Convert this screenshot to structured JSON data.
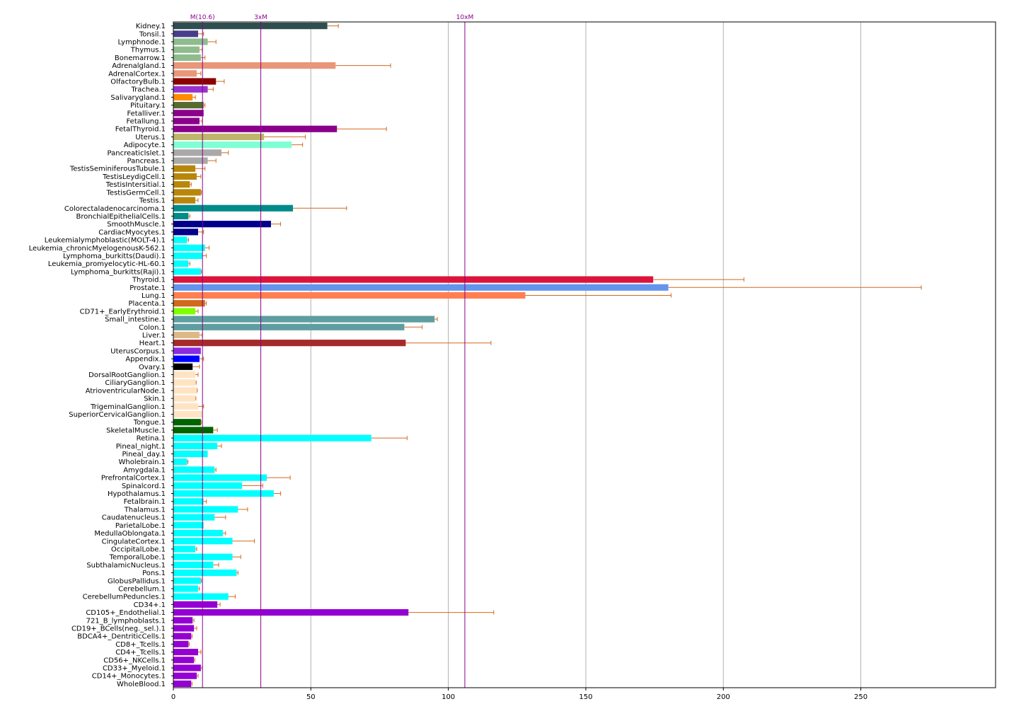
{
  "chart_data": {
    "type": "bar",
    "orientation": "horizontal",
    "xlim": [
      0,
      299
    ],
    "x_ticks": [
      0,
      50,
      100,
      150,
      200,
      250
    ],
    "grid": "vertical",
    "reference_lines": [
      {
        "label": "M(10.6)",
        "value": 10.6
      },
      {
        "label": "3xM",
        "value": 31.8
      },
      {
        "label": "10xM",
        "value": 106
      }
    ],
    "error_color": "#d2691e",
    "reference_color": "#8b008b",
    "categories": [
      "Kidney.1",
      "Tonsil.1",
      "Lymphnode.1",
      "Thymus.1",
      "Bonemarrow.1",
      "Adrenalgland.1",
      "AdrenalCortex.1",
      "OlfactoryBulb.1",
      "Trachea.1",
      "Salivarygland.1",
      "Pituitary.1",
      "Fetalliver.1",
      "Fetallung.1",
      "FetalThyroid.1",
      "Uterus.1",
      "Adipocyte.1",
      "PancreaticIslet.1",
      "Pancreas.1",
      "TestisSeminiferousTubule.1",
      "TestisLeydigCell.1",
      "TestisIntersitial.1",
      "TestisGermCell.1",
      "Testis.1",
      "Colorectaladenocarcinoma.1",
      "BronchialEpithelialCells.1",
      "SmoothMuscle.1",
      "CardiacMyocytes.1",
      "Leukemialymphoblastic(MOLT-4).1",
      "Leukemia_chronicMyelogenousK-562.1",
      "Lymphoma_burkitts(Daudi).1",
      "Leukemia_promyelocytic-HL-60.1",
      "Lymphoma_burkitts(Raji).1",
      "Thyroid.1",
      "Prostate.1",
      "Lung.1",
      "Placenta.1",
      "CD71+_EarlyErythroid.1",
      "Small_intestine.1",
      "Colon.1",
      "Liver.1",
      "Heart.1",
      "UterusCorpus.1",
      "Appendix.1",
      "Ovary.1",
      "DorsalRootGanglion.1",
      "CiliaryGanglion.1",
      "AtrioventricularNode.1",
      "Skin.1",
      "TrigeminalGanglion.1",
      "SuperiorCervicalGanglion.1",
      "Tongue.1",
      "SkeletalMuscle.1",
      "Retina.1",
      "Pineal_night.1",
      "Pineal_day.1",
      "Wholebrain.1",
      "Amygdala.1",
      "PrefrontalCortex.1",
      "Spinalcord.1",
      "Hypothalamus.1",
      "Fetalbrain.1",
      "Thalamus.1",
      "Caudatenucleus.1",
      "ParietalLobe.1",
      "MedullaOblongata.1",
      "CingulateCortex.1",
      "OccipitalLobe.1",
      "TemporalLobe.1",
      "SubthalamicNucleus.1",
      "Pons.1",
      "GlobusPallidus.1",
      "Cerebellum.1",
      "CerebellumPeduncles.1",
      "CD34+.1",
      "CD105+_Endothelial.1",
      "721_B_lymphoblasts.1",
      "CD19+_BCells(neg._sel.).1",
      "BDCA4+_DentriticCells.1",
      "CD8+_Tcells.1",
      "CD4+_Tcells.1",
      "CD56+_NKCells.1",
      "CD33+_Myeloid.1",
      "CD14+_Monocytes.1",
      "WholeBlood.1"
    ],
    "values": [
      56,
      9,
      12.5,
      9.5,
      10,
      59,
      8.5,
      15.5,
      12.5,
      7,
      11,
      11,
      9.5,
      59.5,
      33,
      43,
      17.5,
      12.5,
      8,
      8.5,
      6,
      10,
      8,
      43.5,
      5.5,
      35.5,
      9,
      5,
      11.5,
      10.5,
      5.5,
      10,
      174.5,
      180,
      128,
      11.5,
      8,
      95,
      84,
      9.5,
      84.5,
      10,
      9.5,
      7,
      8,
      8,
      8.5,
      8,
      9,
      10.5,
      10,
      14.5,
      72,
      16,
      12.5,
      5,
      15,
      34,
      25,
      36.5,
      11,
      23.5,
      15,
      11,
      18,
      21.5,
      8,
      21.5,
      14.5,
      23,
      10,
      9,
      20,
      16,
      85.5,
      7,
      7.5,
      6.5,
      5.5,
      9,
      7.5,
      10,
      8.5,
      6.5
    ],
    "errors": [
      4,
      2,
      3,
      1,
      1.5,
      20,
      1.5,
      3,
      2,
      1,
      0.5,
      0,
      1,
      18,
      15,
      4,
      2.5,
      3,
      3.5,
      1.5,
      0.5,
      0.2,
      1,
      19.5,
      0.5,
      3.5,
      2,
      0.5,
      1.5,
      1.5,
      0.5,
      0.2,
      33,
      92,
      53,
      0.5,
      1,
      1,
      6.5,
      1,
      31,
      0,
      1.5,
      2.5,
      1,
      0.3,
      0.2,
      0.2,
      2,
      0,
      0.2,
      1.5,
      13,
      1.5,
      0,
      0.3,
      0.5,
      8.5,
      7.5,
      2.5,
      1,
      3.5,
      4,
      0,
      1,
      8,
      0.5,
      3,
      2,
      0.5,
      0.2,
      0.5,
      2.5,
      1,
      31,
      0.5,
      1,
      0.3,
      0.3,
      1,
      0.3,
      0.5,
      0.5,
      0.3
    ],
    "colors": [
      "#2f4f4f",
      "#483d8b",
      "#8fbc8f",
      "#8fbc8f",
      "#8fbc8f",
      "#e9967a",
      "#e9967a",
      "#8b0000",
      "#9932cc",
      "#ff8c00",
      "#556b2f",
      "#8b008b",
      "#8b008b",
      "#8b008b",
      "#bdb76b",
      "#7fffd4",
      "#a9a9a9",
      "#a9a9a9",
      "#b8860b",
      "#b8860b",
      "#b8860b",
      "#b8860b",
      "#b8860b",
      "#008b8b",
      "#008b8b",
      "#00008b",
      "#00008b",
      "#00ffff",
      "#00ffff",
      "#00ffff",
      "#00ffff",
      "#00ffff",
      "#dc143c",
      "#6495ed",
      "#ff7f50",
      "#d2691e",
      "#7fff00",
      "#5f9ea0",
      "#5f9ea0",
      "#deb887",
      "#a52a2a",
      "#8a2be2",
      "#0000ff",
      "#000000",
      "#ffe4c4",
      "#ffe4c4",
      "#ffe4c4",
      "#ffe4c4",
      "#ffe4c4",
      "#ffe4c4",
      "#006400",
      "#006400",
      "#00ffff",
      "#00ffff",
      "#00ffff",
      "#00ffff",
      "#00ffff",
      "#00ffff",
      "#00ffff",
      "#00ffff",
      "#00ffff",
      "#00ffff",
      "#00ffff",
      "#00ffff",
      "#00ffff",
      "#00ffff",
      "#00ffff",
      "#00ffff",
      "#00ffff",
      "#00ffff",
      "#00ffff",
      "#00ffff",
      "#00ffff",
      "#9400d3",
      "#9400d3",
      "#9400d3",
      "#9400d3",
      "#9400d3",
      "#9400d3",
      "#9400d3",
      "#9400d3",
      "#9400d3",
      "#9400d3",
      "#9400d3"
    ]
  }
}
